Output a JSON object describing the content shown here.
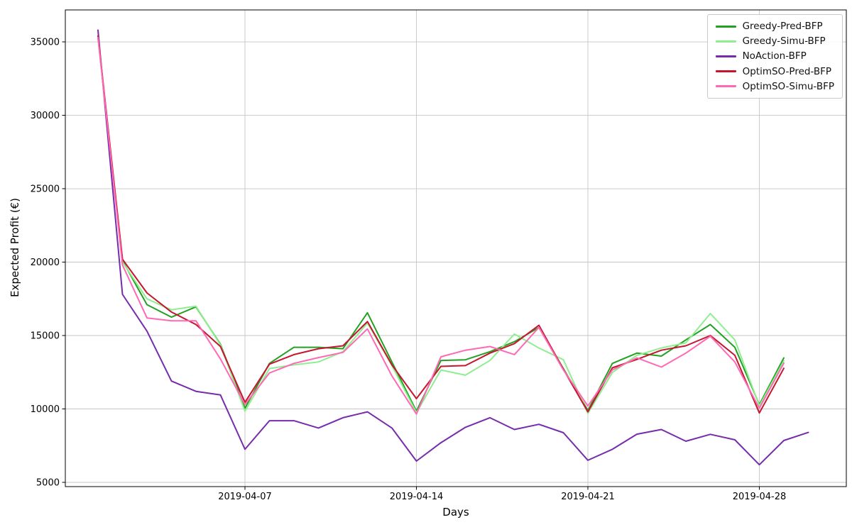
{
  "chart_data": {
    "type": "line",
    "title": "",
    "xlabel": "Days",
    "ylabel": "Expected Profit (€)",
    "grid": true,
    "legend_position": "upper right",
    "ylim": [
      4710,
      37175
    ],
    "ytick_values": [
      5000,
      10000,
      15000,
      20000,
      25000,
      30000,
      35000
    ],
    "ytick_labels": [
      "5000",
      "10000",
      "15000",
      "20000",
      "25000",
      "30000",
      "35000"
    ],
    "xtick_indices": [
      6,
      13,
      20,
      27
    ],
    "xtick_labels": [
      "2019-04-07",
      "2019-04-14",
      "2019-04-21",
      "2019-04-28"
    ],
    "x_dates": [
      "2019-04-01",
      "2019-04-02",
      "2019-04-03",
      "2019-04-04",
      "2019-04-05",
      "2019-04-06",
      "2019-04-07",
      "2019-04-08",
      "2019-04-09",
      "2019-04-10",
      "2019-04-11",
      "2019-04-12",
      "2019-04-13",
      "2019-04-14",
      "2019-04-15",
      "2019-04-16",
      "2019-04-17",
      "2019-04-18",
      "2019-04-19",
      "2019-04-20",
      "2019-04-21",
      "2019-04-22",
      "2019-04-23",
      "2019-04-24",
      "2019-04-25",
      "2019-04-26",
      "2019-04-27",
      "2019-04-28",
      "2019-04-29",
      "2019-04-30"
    ],
    "series": [
      {
        "name": "Greedy-Pred-BFP",
        "color": "#23a123",
        "values": [
          35300,
          20100,
          17100,
          16250,
          16950,
          14400,
          10050,
          13100,
          14200,
          14200,
          14100,
          16550,
          13200,
          9850,
          13300,
          13350,
          13900,
          14580,
          15550,
          12750,
          9900,
          13100,
          13800,
          13600,
          14700,
          15750,
          14200,
          10290,
          13480
        ]
      },
      {
        "name": "Greedy-Simu-BFP",
        "color": "#90ee90",
        "values": [
          35300,
          20000,
          17500,
          16750,
          17000,
          14350,
          9850,
          12750,
          13000,
          13200,
          13900,
          15850,
          12950,
          9750,
          12650,
          12300,
          13300,
          15100,
          14150,
          13350,
          9700,
          12480,
          13650,
          14150,
          14500,
          16500,
          14700,
          10210,
          13280
        ]
      },
      {
        "name": "NoAction-BFP",
        "color": "#762cab",
        "values": [
          35800,
          17800,
          15300,
          11900,
          11200,
          10950,
          7250,
          9200,
          9200,
          8700,
          9400,
          9800,
          8700,
          6450,
          7700,
          8750,
          9400,
          8600,
          8950,
          8380,
          6500,
          7250,
          8280,
          8600,
          7800,
          8270,
          7900,
          6200,
          7850,
          8400
        ]
      },
      {
        "name": "OptimSO-Pred-BFP",
        "color": "#c4162e",
        "values": [
          35400,
          20200,
          17900,
          16600,
          15750,
          14250,
          10450,
          13050,
          13700,
          14100,
          14300,
          15950,
          13000,
          10700,
          12900,
          12950,
          13800,
          14450,
          15700,
          12700,
          9800,
          12800,
          13370,
          14000,
          14300,
          15000,
          13650,
          9725,
          12770
        ]
      },
      {
        "name": "OptimSO-Simu-BFP",
        "color": "#ff69b4",
        "values": [
          35300,
          19800,
          16200,
          16000,
          16000,
          13400,
          10300,
          12450,
          13100,
          13500,
          13850,
          15450,
          12250,
          9650,
          13550,
          14000,
          14250,
          13700,
          15550,
          12650,
          10200,
          12650,
          13480,
          12850,
          13800,
          14950,
          13200,
          10050,
          13120
        ]
      }
    ]
  }
}
